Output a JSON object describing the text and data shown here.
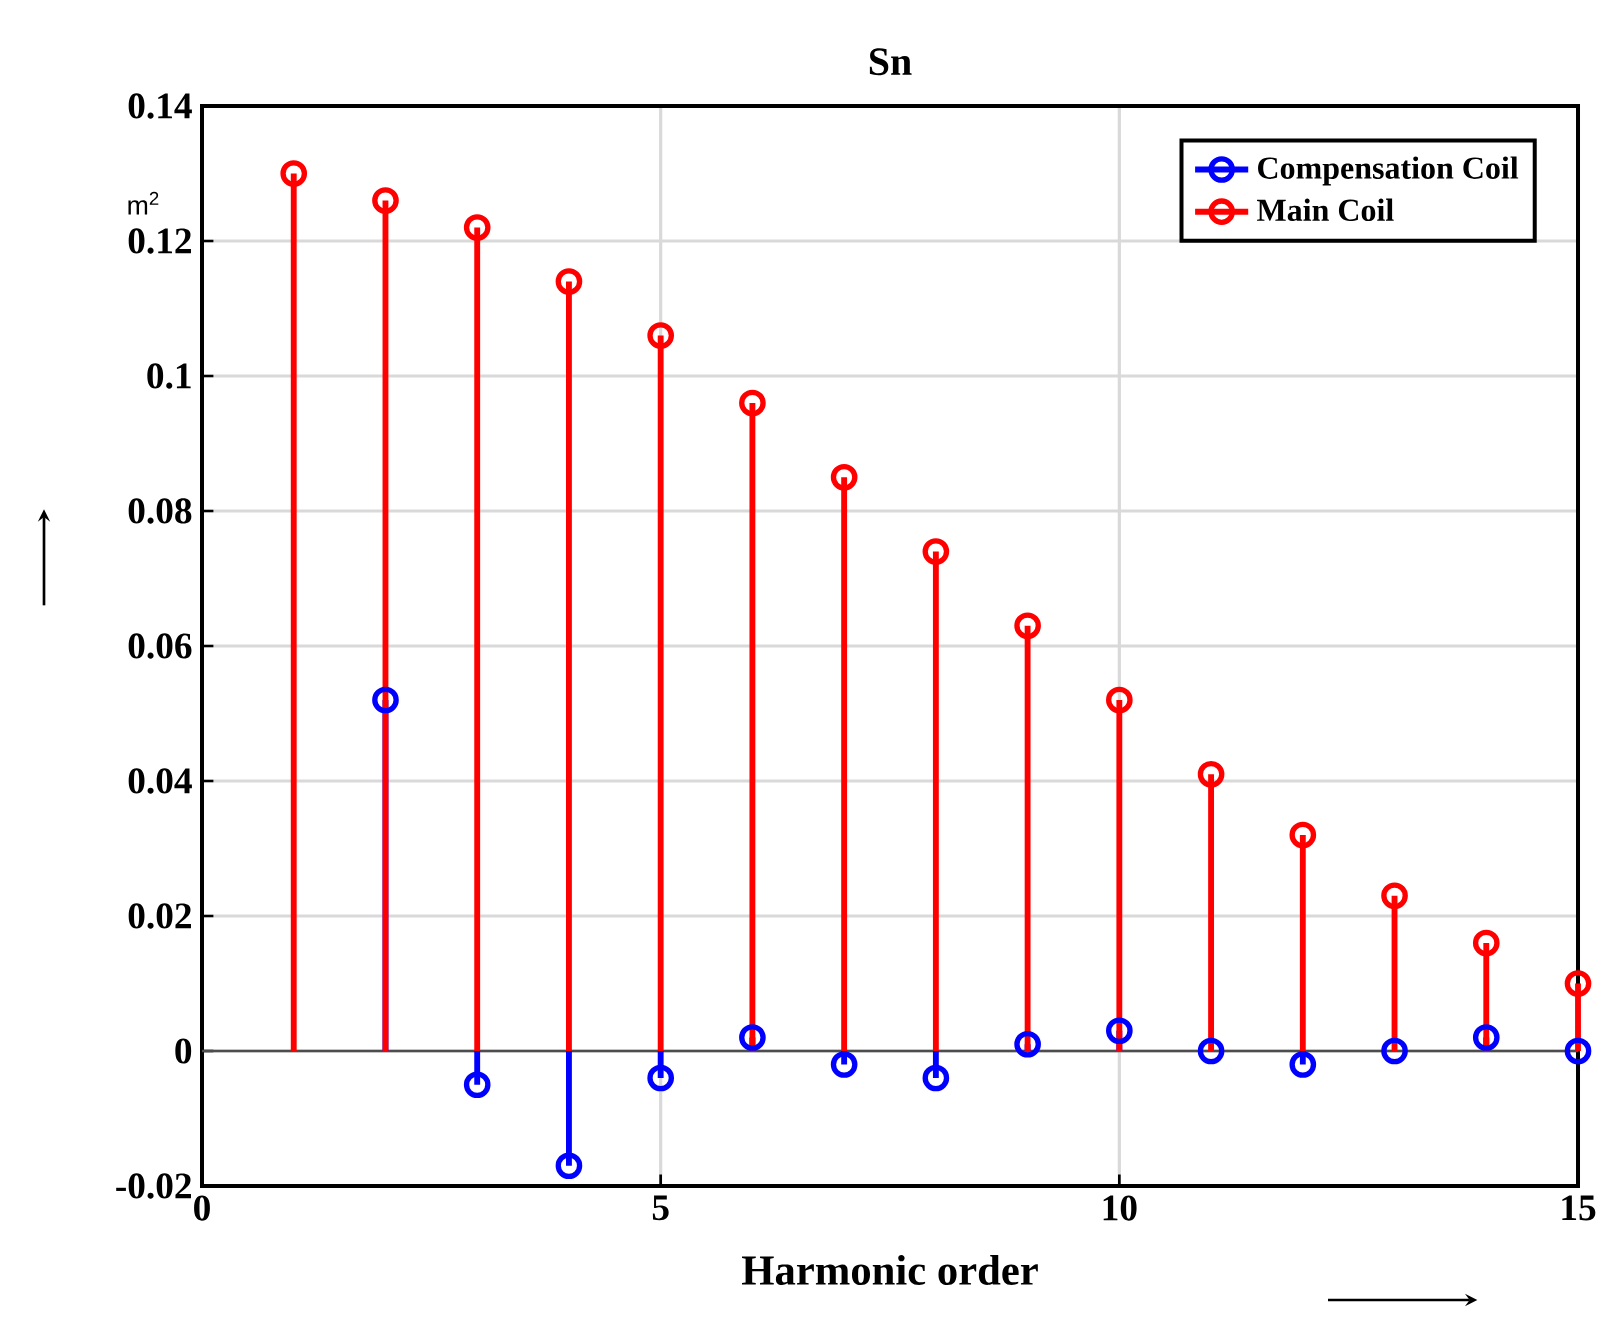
{
  "chart_data": {
    "type": "lollipop",
    "title": "Sn",
    "xlabel": "Harmonic order",
    "ylabel": "m$^{2}$",
    "x": [
      1,
      2,
      3,
      4,
      5,
      6,
      7,
      8,
      9,
      10,
      11,
      12,
      13,
      14,
      15
    ],
    "series": [
      {
        "name": "Compensation Coil",
        "color": "#0000ff",
        "values": [
          null,
          0.052,
          -0.005,
          -0.017,
          -0.004,
          0.002,
          -0.002,
          -0.004,
          0.001,
          0.003,
          0.0,
          -0.002,
          0.0,
          0.002,
          0.0
        ]
      },
      {
        "name": "Main Coil",
        "color": "#ff0000",
        "values": [
          0.13,
          0.126,
          0.122,
          0.114,
          0.106,
          0.096,
          0.085,
          0.074,
          0.063,
          0.052,
          0.041,
          0.032,
          0.023,
          0.016,
          0.01
        ]
      }
    ],
    "xlim": [
      0,
      15
    ],
    "xticks": [
      0,
      5,
      10,
      15
    ],
    "ylim": [
      -0.02,
      0.14
    ],
    "yticks": [
      -0.02,
      0,
      0.02,
      0.04,
      0.06,
      0.08,
      0.1,
      0.12,
      0.14
    ],
    "ref_lines": [
      {
        "axis": "y",
        "value": 0,
        "color": "#4d4d4d"
      }
    ],
    "grid": true,
    "legend": "top right",
    "marker": "circle"
  }
}
